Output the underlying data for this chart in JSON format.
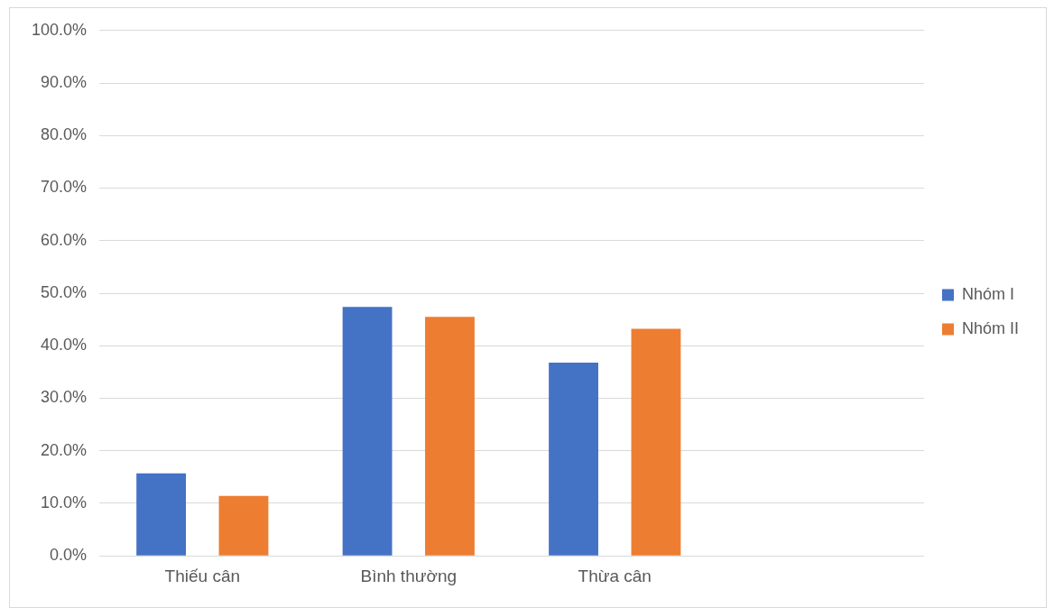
{
  "chart_data": {
    "type": "bar",
    "categories": [
      "Thiếu cân",
      "Bình thường",
      "Thừa cân",
      null
    ],
    "series": [
      {
        "name": "Nhóm I",
        "color": "#4472c4",
        "values": [
          15.7,
          47.4,
          36.8,
          null
        ]
      },
      {
        "name": "Nhóm II",
        "color": "#ed7d31",
        "values": [
          11.4,
          45.5,
          43.2,
          null
        ]
      }
    ],
    "ylim": [
      0,
      100
    ],
    "yticks": [
      {
        "value": 0,
        "label": "0.0%"
      },
      {
        "value": 10,
        "label": "10.0%"
      },
      {
        "value": 20,
        "label": "20.0%"
      },
      {
        "value": 30,
        "label": "30.0%"
      },
      {
        "value": 40,
        "label": "40.0%"
      },
      {
        "value": 50,
        "label": "50.0%"
      },
      {
        "value": 60,
        "label": "60.0%"
      },
      {
        "value": 70,
        "label": "70.0%"
      },
      {
        "value": 80,
        "label": "80.0%"
      },
      {
        "value": 90,
        "label": "90.0%"
      },
      {
        "value": 100,
        "label": "100.0%"
      }
    ],
    "grid": "y",
    "legend": "right"
  }
}
